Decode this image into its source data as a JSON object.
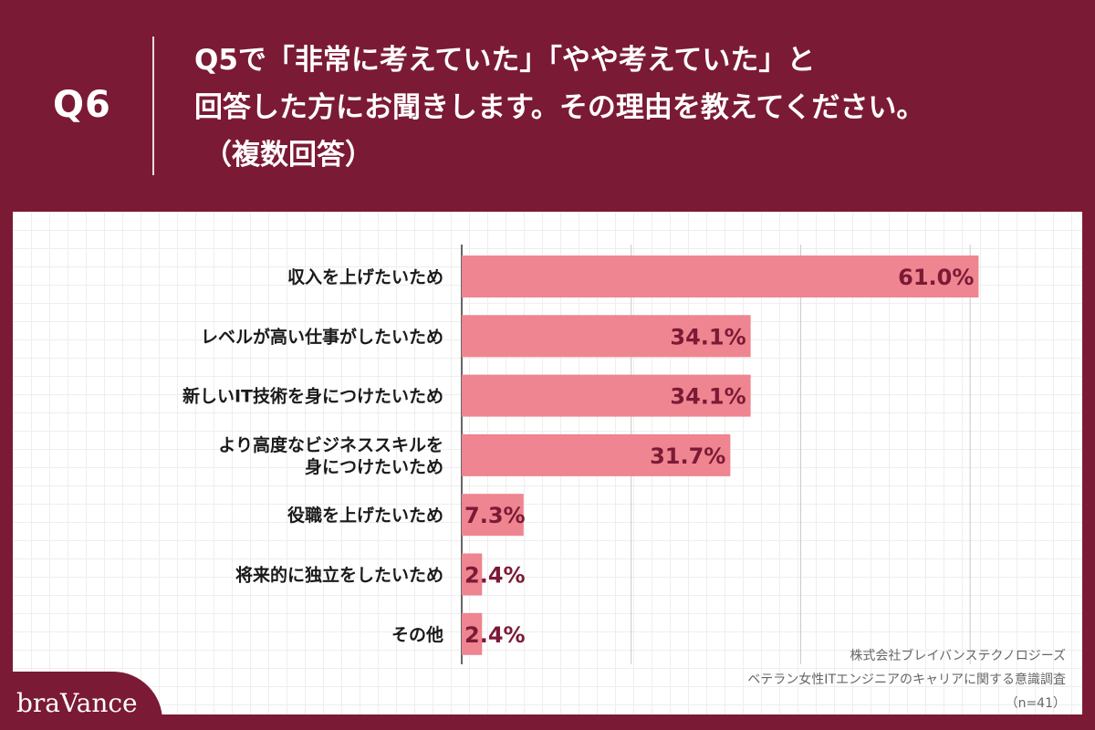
{
  "header": {
    "qnum": "Q6",
    "line1": "Q5で「非常に考えていた」「やや考えていた」と",
    "line2": "回答した方にお聞きします。その理由を教えてください。",
    "line3": "（複数回答）"
  },
  "chart_data": {
    "type": "bar",
    "orientation": "horizontal",
    "categories": [
      [
        "収入を上げたいため"
      ],
      [
        "レベルが高い仕事がしたいため"
      ],
      [
        "新しいIT技術を身につけたいため"
      ],
      [
        "より高度なビジネススキルを",
        "身につけたいため"
      ],
      [
        "役職を上げたいため"
      ],
      [
        "将来的に独立をしたいため"
      ],
      [
        "その他"
      ]
    ],
    "values": [
      61.0,
      34.1,
      34.1,
      31.7,
      7.3,
      2.4,
      2.4
    ],
    "value_labels": [
      "61.0%",
      "34.1%",
      "34.1%",
      "31.7%",
      "7.3%",
      "2.4%",
      "2.4%"
    ],
    "xlim": [
      0,
      70
    ],
    "grid": true,
    "bar_color": "#ee8590",
    "label_color": "#7b1a35"
  },
  "source": {
    "line1": "株式会社ブレイバンステクノロジーズ",
    "line2": "ベテラン女性ITエンジニアのキャリアに関する意識調査",
    "line3": "（n=41）"
  },
  "brand": "braVance"
}
